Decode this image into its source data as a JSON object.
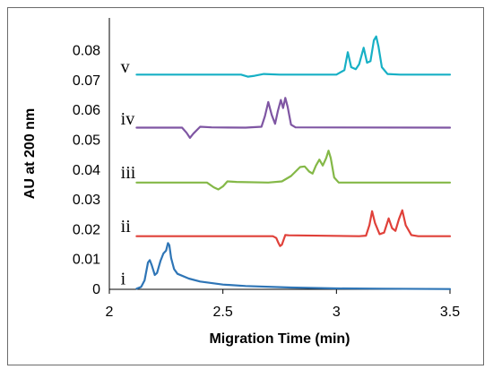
{
  "chart_data": {
    "type": "line",
    "xlabel": "Migration Time (min)",
    "ylabel": "AU at 200 nm",
    "xlim": [
      2,
      3.5
    ],
    "ylim": [
      0,
      0.085
    ],
    "xticks": [
      "2",
      "2.5",
      "3",
      "3.5"
    ],
    "yticks": [
      "0",
      "0.01",
      "0.02",
      "0.03",
      "0.04",
      "0.05",
      "0.06",
      "0.07",
      "0.08"
    ],
    "grid": false,
    "series": [
      {
        "name": "i",
        "color": "#2e75b6",
        "points": [
          [
            2.12,
            0.0002
          ],
          [
            2.14,
            0.0008
          ],
          [
            2.155,
            0.003
          ],
          [
            2.17,
            0.009
          ],
          [
            2.178,
            0.0098
          ],
          [
            2.187,
            0.008
          ],
          [
            2.2,
            0.0048
          ],
          [
            2.21,
            0.0055
          ],
          [
            2.225,
            0.0095
          ],
          [
            2.238,
            0.012
          ],
          [
            2.25,
            0.013
          ],
          [
            2.258,
            0.0155
          ],
          [
            2.264,
            0.0148
          ],
          [
            2.272,
            0.0105
          ],
          [
            2.285,
            0.0068
          ],
          [
            2.3,
            0.0052
          ],
          [
            2.35,
            0.0036
          ],
          [
            2.4,
            0.0026
          ],
          [
            2.5,
            0.0016
          ],
          [
            2.6,
            0.0011
          ],
          [
            2.8,
            0.0006
          ],
          [
            3.0,
            0.0003
          ],
          [
            3.2,
            0.0002
          ],
          [
            3.5,
            0.0001
          ]
        ]
      },
      {
        "name": "ii",
        "color": "#e0413a",
        "points": [
          [
            2.12,
            0.0178
          ],
          [
            2.72,
            0.0178
          ],
          [
            2.735,
            0.0172
          ],
          [
            2.745,
            0.0155
          ],
          [
            2.752,
            0.0145
          ],
          [
            2.76,
            0.015
          ],
          [
            2.775,
            0.0182
          ],
          [
            2.79,
            0.0181
          ],
          [
            3.1,
            0.0178
          ],
          [
            3.13,
            0.018
          ],
          [
            3.145,
            0.0215
          ],
          [
            3.157,
            0.0262
          ],
          [
            3.17,
            0.0222
          ],
          [
            3.19,
            0.0185
          ],
          [
            3.21,
            0.019
          ],
          [
            3.23,
            0.0238
          ],
          [
            3.245,
            0.0205
          ],
          [
            3.26,
            0.0196
          ],
          [
            3.275,
            0.0235
          ],
          [
            3.29,
            0.0265
          ],
          [
            3.305,
            0.0215
          ],
          [
            3.33,
            0.0182
          ],
          [
            3.36,
            0.0178
          ],
          [
            3.5,
            0.0178
          ]
        ]
      },
      {
        "name": "iii",
        "color": "#84b847",
        "points": [
          [
            2.12,
            0.0358
          ],
          [
            2.43,
            0.0358
          ],
          [
            2.46,
            0.0342
          ],
          [
            2.48,
            0.0335
          ],
          [
            2.5,
            0.0345
          ],
          [
            2.52,
            0.0362
          ],
          [
            2.56,
            0.036
          ],
          [
            2.7,
            0.0358
          ],
          [
            2.76,
            0.0362
          ],
          [
            2.8,
            0.038
          ],
          [
            2.84,
            0.041
          ],
          [
            2.86,
            0.0412
          ],
          [
            2.88,
            0.0395
          ],
          [
            2.895,
            0.0388
          ],
          [
            2.91,
            0.0415
          ],
          [
            2.925,
            0.0435
          ],
          [
            2.94,
            0.0415
          ],
          [
            2.955,
            0.044
          ],
          [
            2.965,
            0.0465
          ],
          [
            2.975,
            0.044
          ],
          [
            2.99,
            0.0375
          ],
          [
            3.01,
            0.0358
          ],
          [
            3.5,
            0.0358
          ]
        ]
      },
      {
        "name": "iv",
        "color": "#7f56a3",
        "points": [
          [
            2.12,
            0.0542
          ],
          [
            2.32,
            0.0542
          ],
          [
            2.34,
            0.0525
          ],
          [
            2.355,
            0.0508
          ],
          [
            2.37,
            0.0522
          ],
          [
            2.4,
            0.0545
          ],
          [
            2.45,
            0.0543
          ],
          [
            2.6,
            0.0542
          ],
          [
            2.67,
            0.0545
          ],
          [
            2.685,
            0.058
          ],
          [
            2.7,
            0.0628
          ],
          [
            2.715,
            0.0585
          ],
          [
            2.73,
            0.0555
          ],
          [
            2.742,
            0.0598
          ],
          [
            2.755,
            0.0635
          ],
          [
            2.765,
            0.0608
          ],
          [
            2.775,
            0.0642
          ],
          [
            2.785,
            0.0612
          ],
          [
            2.8,
            0.0552
          ],
          [
            2.82,
            0.0543
          ],
          [
            3.5,
            0.0542
          ]
        ]
      },
      {
        "name": "v",
        "color": "#17b0c5",
        "points": [
          [
            2.12,
            0.072
          ],
          [
            2.58,
            0.072
          ],
          [
            2.61,
            0.0713
          ],
          [
            2.64,
            0.0716
          ],
          [
            2.68,
            0.0722
          ],
          [
            2.75,
            0.072
          ],
          [
            3.0,
            0.072
          ],
          [
            3.035,
            0.0735
          ],
          [
            3.05,
            0.0795
          ],
          [
            3.065,
            0.0745
          ],
          [
            3.085,
            0.0738
          ],
          [
            3.1,
            0.0755
          ],
          [
            3.12,
            0.081
          ],
          [
            3.135,
            0.076
          ],
          [
            3.15,
            0.0765
          ],
          [
            3.165,
            0.0835
          ],
          [
            3.175,
            0.0848
          ],
          [
            3.185,
            0.0815
          ],
          [
            3.2,
            0.0745
          ],
          [
            3.225,
            0.0722
          ],
          [
            3.28,
            0.072
          ],
          [
            3.5,
            0.072
          ]
        ]
      }
    ],
    "labels": [
      {
        "text": "i",
        "x": 2.05,
        "y": 0.0035
      },
      {
        "text": "ii",
        "x": 2.05,
        "y": 0.021
      },
      {
        "text": "iii",
        "x": 2.05,
        "y": 0.039
      },
      {
        "text": "iv",
        "x": 2.05,
        "y": 0.057
      },
      {
        "text": "v",
        "x": 2.05,
        "y": 0.0745
      }
    ]
  }
}
